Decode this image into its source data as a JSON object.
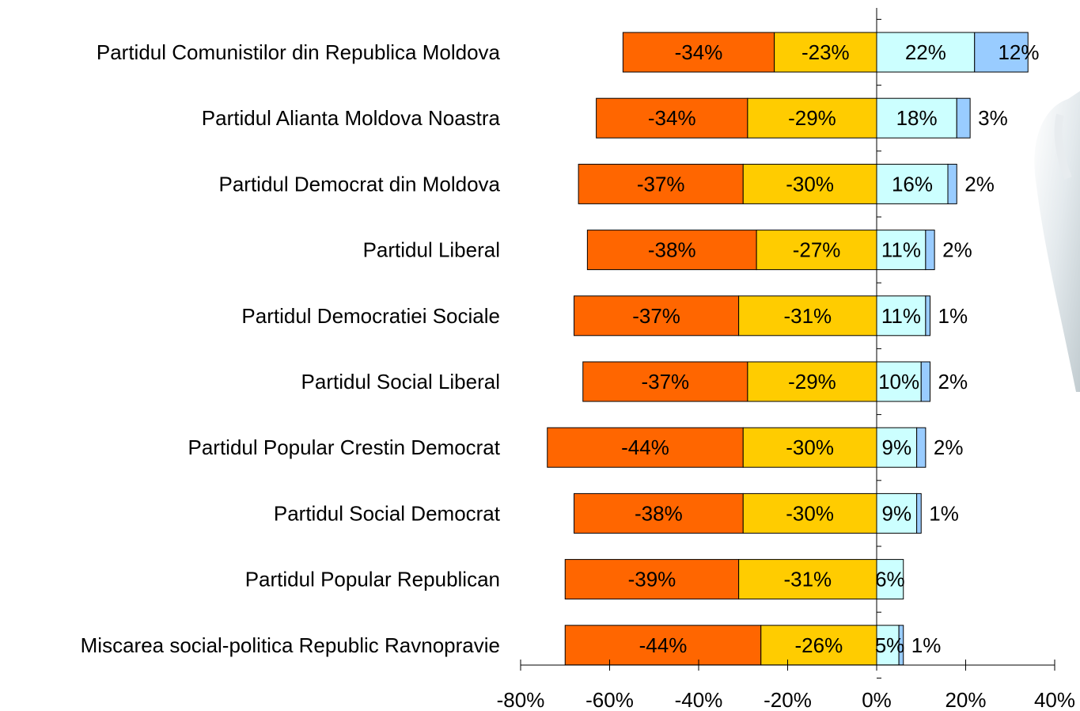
{
  "chart_data": {
    "type": "bar",
    "orientation": "horizontal",
    "stacked": "diverging",
    "title": "",
    "xlabel": "",
    "ylabel": "",
    "xlim": [
      -80,
      40
    ],
    "xticks": [
      "-80%",
      "-60%",
      "-40%",
      "-20%",
      "0%",
      "20%",
      "40%"
    ],
    "grid": false,
    "legend": "none",
    "categories": [
      "Partidul Comunistilor din Republica Moldova",
      "Partidul Alianta Moldova Noastra",
      "Partidul Democrat din Moldova",
      "Partidul Liberal",
      "Partidul Democratiei Sociale",
      "Partidul Social Liberal",
      "Partidul Popular Crestin Democrat",
      "Partidul Social Democrat",
      "Partidul Popular Republican",
      "Miscarea social-politica Republic Ravnopravie"
    ],
    "series": [
      {
        "color": "#ff6600",
        "side": "negative-outer",
        "values": [
          -34,
          -34,
          -37,
          -38,
          -37,
          -37,
          -44,
          -38,
          -39,
          -44
        ],
        "labels": [
          "-34%",
          "-34%",
          "-37%",
          "-38%",
          "-37%",
          "-37%",
          "-44%",
          "-38%",
          "-39%",
          "-44%"
        ]
      },
      {
        "color": "#ffcc00",
        "side": "negative-inner",
        "values": [
          -23,
          -29,
          -30,
          -27,
          -31,
          -29,
          -30,
          -30,
          -31,
          -26
        ],
        "labels": [
          "-23%",
          "-29%",
          "-30%",
          "-27%",
          "-31%",
          "-29%",
          "-30%",
          "-30%",
          "-31%",
          "-26%"
        ]
      },
      {
        "color": "#ccffff",
        "side": "positive-inner",
        "values": [
          22,
          18,
          16,
          11,
          11,
          10,
          9,
          9,
          6,
          5
        ],
        "labels": [
          "22%",
          "18%",
          "16%",
          "11%",
          "11%",
          "10%",
          "9%",
          "9%",
          "6%",
          "5%"
        ]
      },
      {
        "color": "#99ccff",
        "side": "positive-outer",
        "values": [
          12,
          3,
          2,
          2,
          1,
          2,
          2,
          1,
          0,
          1
        ],
        "labels": [
          "12%",
          "3%",
          "2%",
          "2%",
          "1%",
          "2%",
          "2%",
          "1%",
          "",
          "1%"
        ]
      }
    ]
  }
}
